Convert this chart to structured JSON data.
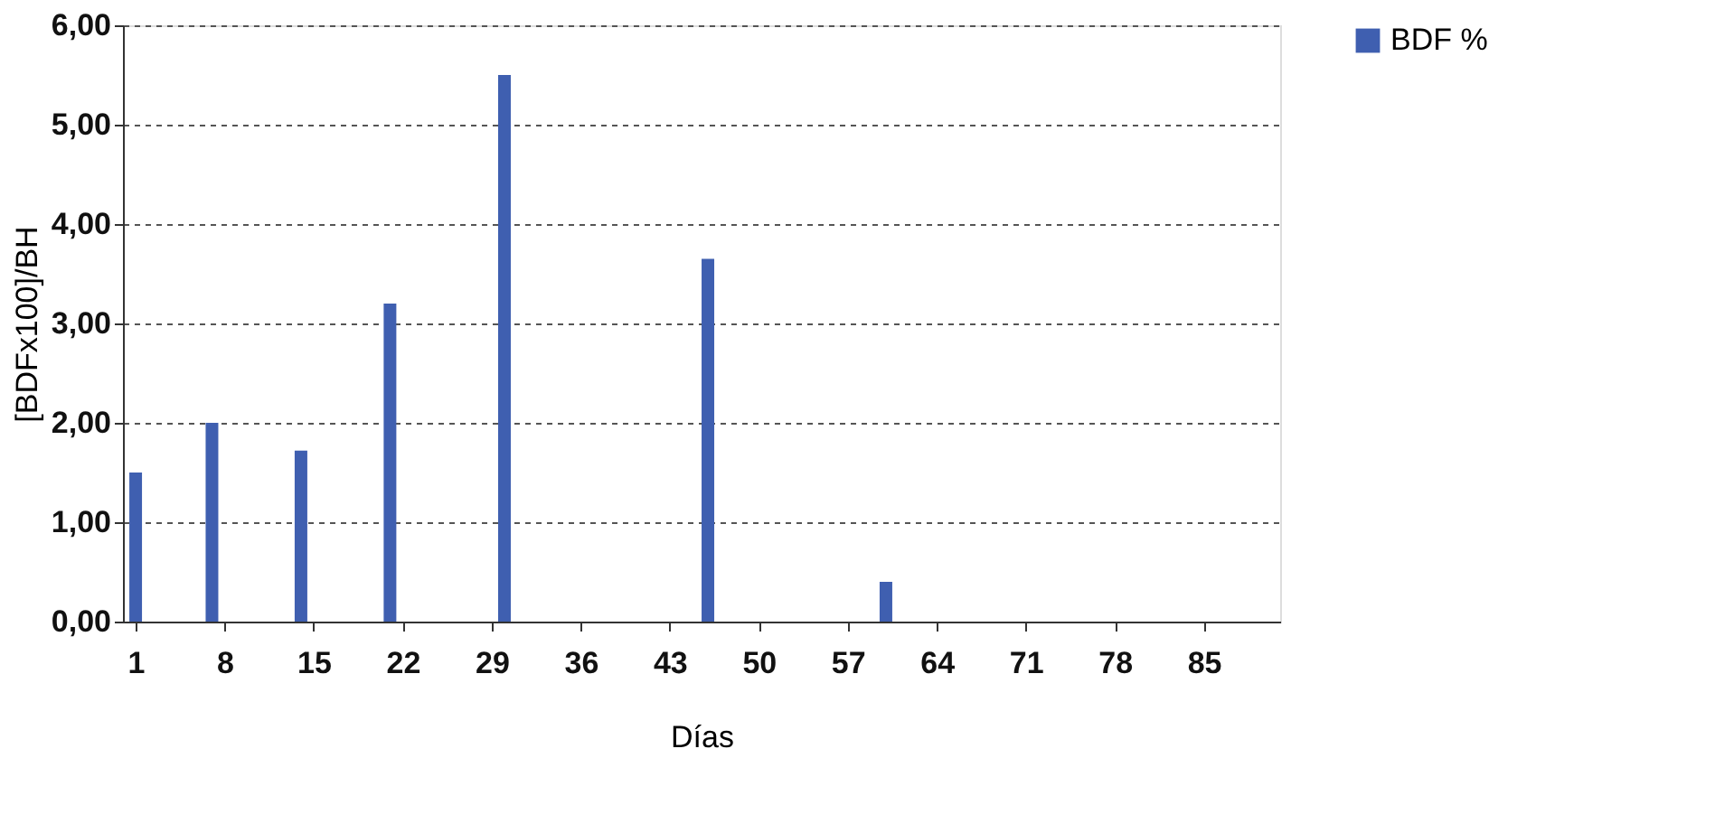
{
  "chart_data": {
    "type": "bar",
    "xlabel": "Días",
    "ylabel": "[BDFx100]/BH",
    "x": [
      1,
      7,
      14,
      21,
      30,
      46,
      60
    ],
    "series": [
      {
        "name": "BDF %",
        "color": "#3f5fb0",
        "values": [
          1.5,
          2.0,
          1.72,
          3.2,
          5.5,
          3.65,
          0.4
        ]
      }
    ],
    "xlim": [
      0,
      91
    ],
    "xticks": [
      1,
      8,
      15,
      22,
      29,
      36,
      43,
      50,
      57,
      64,
      71,
      78,
      85
    ],
    "ylim": [
      0,
      6
    ],
    "yticks": [
      {
        "value": 0,
        "label": "0,00"
      },
      {
        "value": 1,
        "label": "1,00"
      },
      {
        "value": 2,
        "label": "2,00"
      },
      {
        "value": 3,
        "label": "3,00"
      },
      {
        "value": 4,
        "label": "4,00"
      },
      {
        "value": 5,
        "label": "5,00"
      },
      {
        "value": 6,
        "label": "6,00"
      }
    ],
    "grid": "y",
    "legend": "right"
  }
}
